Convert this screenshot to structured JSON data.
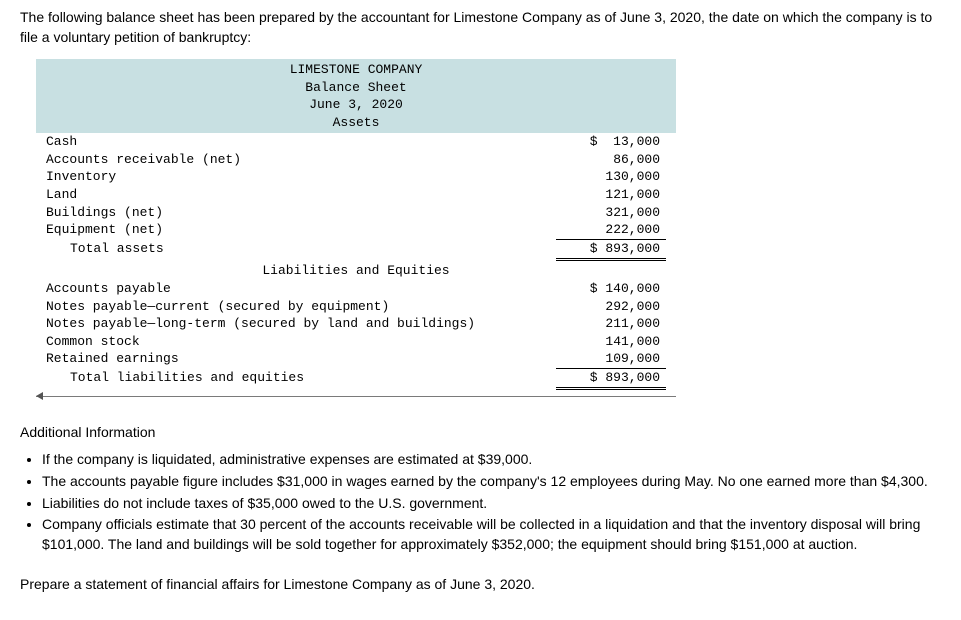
{
  "intro": "The following balance sheet has been prepared by the accountant for Limestone Company as of June 3, 2020, the date on which the company is to file a voluntary petition of bankruptcy:",
  "header": {
    "company": "LIMESTONE COMPANY",
    "title": "Balance Sheet",
    "date": "June 3, 2020",
    "section_assets": "Assets",
    "section_liab": "Liabilities and Equities"
  },
  "assets": {
    "rows": [
      {
        "label": "Cash",
        "value": "$  13,000"
      },
      {
        "label": "Accounts receivable (net)",
        "value": "86,000"
      },
      {
        "label": "Inventory",
        "value": "130,000"
      },
      {
        "label": "Land",
        "value": "121,000"
      },
      {
        "label": "Buildings (net)",
        "value": "321,000"
      },
      {
        "label": "Equipment (net)",
        "value": "222,000"
      }
    ],
    "total_label": "Total assets",
    "total_value": "$ 893,000"
  },
  "liab": {
    "rows": [
      {
        "label": "Accounts payable",
        "value": "$ 140,000"
      },
      {
        "label": "Notes payable—current (secured by equipment)",
        "value": "292,000"
      },
      {
        "label": "Notes payable—long-term (secured by land and buildings)",
        "value": "211,000"
      },
      {
        "label": "Common stock",
        "value": "141,000"
      },
      {
        "label": "Retained earnings",
        "value": "109,000"
      }
    ],
    "total_label": "Total liabilities and equities",
    "total_value": "$ 893,000"
  },
  "additional": {
    "title": "Additional Information",
    "items": [
      "If the company is liquidated, administrative expenses are estimated at $39,000.",
      "The accounts payable figure includes $31,000 in wages earned by the company's 12 employees during May. No one earned more than $4,300.",
      "Liabilities do not include taxes of $35,000 owed to the U.S. government.",
      "Company officials estimate that 30 percent of the accounts receivable will be collected in a liquidation and that the inventory disposal will bring $101,000. The land and buildings will be sold together for approximately $352,000; the equipment should bring $151,000 at auction."
    ]
  },
  "task": "Prepare a statement of financial affairs for Limestone Company as of June 3, 2020."
}
